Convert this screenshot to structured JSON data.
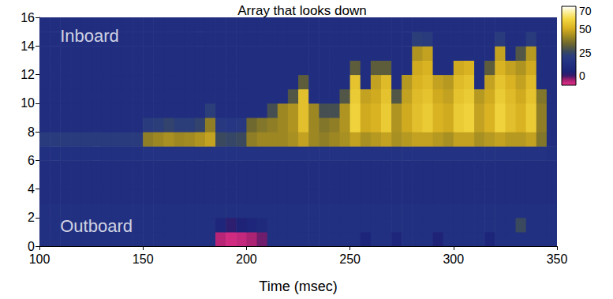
{
  "chart_data": {
    "type": "heatmap",
    "title": "Array that looks down",
    "xlabel": "Time (msec)",
    "xlim": [
      100,
      350
    ],
    "xticks": [
      100,
      150,
      200,
      250,
      300,
      350
    ],
    "ylim": [
      0,
      16
    ],
    "yticks": [
      0,
      2,
      4,
      6,
      8,
      10,
      12,
      14,
      16
    ],
    "grid": false,
    "x_edges": [
      100,
      105,
      110,
      115,
      120,
      125,
      130,
      135,
      140,
      145,
      150,
      155,
      160,
      165,
      170,
      175,
      180,
      185,
      190,
      195,
      200,
      205,
      210,
      215,
      220,
      225,
      230,
      235,
      240,
      245,
      250,
      255,
      260,
      265,
      270,
      275,
      280,
      285,
      290,
      295,
      300,
      305,
      310,
      315,
      320,
      325,
      330,
      335,
      340,
      345,
      350
    ],
    "y_edges": [
      0,
      1,
      2,
      3,
      4,
      5,
      6,
      7,
      8,
      9,
      10,
      11,
      12,
      13,
      14,
      15,
      16
    ],
    "values": [
      [
        13,
        13,
        13,
        13,
        13,
        13,
        13,
        13,
        13,
        13,
        13,
        13,
        13,
        13,
        13,
        13,
        13,
        -6,
        -8,
        -7,
        -5,
        -2,
        13,
        13,
        13,
        13,
        13,
        13,
        13,
        13,
        13,
        5,
        13,
        13,
        6,
        13,
        13,
        13,
        4,
        13,
        13,
        13,
        13,
        5,
        13,
        13,
        13,
        13,
        13,
        13
      ],
      [
        13,
        13,
        13,
        13,
        13,
        13,
        13,
        13,
        13,
        13,
        13,
        13,
        13,
        13,
        13,
        13,
        13,
        6,
        2,
        4,
        6,
        9,
        13,
        13,
        13,
        13,
        13,
        13,
        13,
        13,
        13,
        13,
        13,
        13,
        13,
        13,
        13,
        13,
        13,
        13,
        13,
        13,
        13,
        13,
        13,
        13,
        26,
        13,
        13,
        13
      ],
      [
        13,
        13,
        13,
        13,
        13,
        13,
        13,
        13,
        13,
        13,
        13,
        13,
        13,
        13,
        13,
        13,
        13,
        13,
        13,
        13,
        13,
        13,
        13,
        13,
        13,
        13,
        13,
        13,
        13,
        13,
        13,
        13,
        13,
        13,
        13,
        13,
        13,
        13,
        13,
        13,
        13,
        13,
        13,
        13,
        13,
        13,
        13,
        13,
        13,
        13
      ],
      [
        11,
        11,
        11,
        11,
        11,
        11,
        11,
        11,
        11,
        11,
        11,
        11,
        11,
        11,
        11,
        11,
        11,
        11,
        11,
        11,
        11,
        11,
        11,
        11,
        11,
        11,
        11,
        11,
        11,
        11,
        11,
        11,
        11,
        11,
        11,
        11,
        11,
        11,
        11,
        11,
        11,
        11,
        11,
        11,
        11,
        11,
        11,
        11,
        11,
        11
      ],
      [
        11,
        11,
        11,
        11,
        11,
        11,
        11,
        11,
        11,
        11,
        11,
        11,
        11,
        11,
        11,
        11,
        11,
        11,
        11,
        11,
        11,
        11,
        11,
        11,
        11,
        11,
        11,
        11,
        11,
        11,
        11,
        11,
        11,
        11,
        11,
        11,
        11,
        11,
        11,
        11,
        11,
        11,
        11,
        11,
        11,
        11,
        11,
        11,
        11,
        11
      ],
      [
        11,
        11,
        11,
        11,
        11,
        11,
        11,
        11,
        11,
        11,
        11,
        11,
        11,
        11,
        11,
        11,
        11,
        11,
        11,
        11,
        11,
        11,
        11,
        11,
        11,
        11,
        11,
        11,
        11,
        11,
        11,
        11,
        11,
        11,
        11,
        11,
        11,
        11,
        11,
        11,
        11,
        11,
        11,
        11,
        11,
        11,
        11,
        11,
        11,
        11
      ],
      [
        13,
        13,
        13,
        13,
        13,
        13,
        13,
        13,
        13,
        13,
        15,
        15,
        15,
        15,
        15,
        15,
        15,
        15,
        15,
        15,
        15,
        15,
        15,
        15,
        15,
        15,
        15,
        15,
        15,
        15,
        15,
        15,
        15,
        15,
        15,
        15,
        15,
        15,
        15,
        15,
        15,
        15,
        15,
        15,
        15,
        15,
        15,
        15,
        15,
        13
      ],
      [
        20,
        20,
        20,
        20,
        20,
        20,
        20,
        20,
        20,
        20,
        40,
        42,
        44,
        42,
        43,
        45,
        48,
        26,
        25,
        26,
        40,
        42,
        42,
        42,
        44,
        48,
        42,
        40,
        42,
        44,
        48,
        44,
        46,
        48,
        44,
        46,
        48,
        48,
        46,
        44,
        48,
        48,
        44,
        46,
        48,
        46,
        46,
        48,
        38,
        12
      ],
      [
        11,
        11,
        11,
        11,
        11,
        11,
        11,
        11,
        11,
        11,
        20,
        22,
        24,
        22,
        22,
        24,
        40,
        18,
        17,
        18,
        35,
        38,
        40,
        42,
        45,
        55,
        42,
        38,
        40,
        45,
        60,
        50,
        52,
        58,
        45,
        50,
        55,
        58,
        52,
        50,
        58,
        60,
        48,
        52,
        60,
        55,
        52,
        58,
        40,
        11
      ],
      [
        11,
        11,
        11,
        11,
        11,
        11,
        11,
        11,
        11,
        11,
        11,
        11,
        11,
        11,
        11,
        11,
        22,
        11,
        11,
        11,
        12,
        12,
        28,
        42,
        45,
        55,
        42,
        28,
        28,
        45,
        60,
        50,
        52,
        58,
        45,
        50,
        55,
        58,
        52,
        50,
        58,
        60,
        48,
        52,
        60,
        55,
        52,
        58,
        40,
        11
      ],
      [
        11,
        11,
        11,
        11,
        11,
        11,
        11,
        11,
        11,
        11,
        11,
        11,
        11,
        11,
        11,
        11,
        11,
        11,
        11,
        11,
        12,
        12,
        12,
        12,
        30,
        55,
        12,
        12,
        12,
        30,
        58,
        48,
        50,
        56,
        30,
        48,
        54,
        56,
        50,
        48,
        56,
        58,
        46,
        50,
        58,
        54,
        50,
        56,
        38,
        11
      ],
      [
        11,
        11,
        11,
        11,
        11,
        11,
        11,
        11,
        11,
        11,
        11,
        11,
        11,
        11,
        11,
        11,
        11,
        11,
        11,
        11,
        12,
        12,
        12,
        12,
        12,
        32,
        12,
        12,
        12,
        12,
        56,
        12,
        48,
        54,
        12,
        46,
        52,
        54,
        48,
        46,
        54,
        56,
        12,
        48,
        56,
        52,
        48,
        54,
        12,
        11
      ],
      [
        11,
        11,
        11,
        11,
        11,
        11,
        11,
        11,
        11,
        11,
        11,
        11,
        11,
        11,
        11,
        11,
        11,
        11,
        11,
        11,
        12,
        12,
        12,
        12,
        12,
        12,
        12,
        12,
        12,
        12,
        32,
        12,
        32,
        32,
        12,
        12,
        50,
        52,
        12,
        12,
        50,
        52,
        12,
        32,
        52,
        48,
        45,
        50,
        12,
        11
      ],
      [
        11,
        11,
        11,
        11,
        11,
        11,
        11,
        11,
        11,
        11,
        11,
        11,
        11,
        11,
        11,
        11,
        11,
        11,
        11,
        11,
        12,
        12,
        12,
        12,
        12,
        12,
        12,
        12,
        12,
        12,
        12,
        12,
        12,
        12,
        12,
        12,
        45,
        48,
        12,
        12,
        12,
        12,
        12,
        12,
        48,
        12,
        30,
        46,
        12,
        11
      ],
      [
        11,
        11,
        11,
        11,
        11,
        11,
        11,
        11,
        11,
        11,
        11,
        11,
        11,
        11,
        11,
        11,
        11,
        11,
        11,
        11,
        11,
        11,
        11,
        11,
        11,
        11,
        11,
        11,
        11,
        11,
        11,
        11,
        11,
        11,
        11,
        11,
        22,
        20,
        11,
        11,
        11,
        11,
        11,
        11,
        20,
        11,
        11,
        20,
        11,
        11
      ],
      [
        11,
        11,
        11,
        11,
        11,
        11,
        11,
        11,
        11,
        11,
        11,
        11,
        11,
        11,
        11,
        11,
        11,
        11,
        11,
        11,
        11,
        11,
        11,
        11,
        11,
        11,
        11,
        11,
        11,
        11,
        11,
        11,
        11,
        11,
        11,
        11,
        11,
        11,
        11,
        11,
        11,
        11,
        11,
        11,
        11,
        11,
        11,
        11,
        11,
        11
      ]
    ],
    "colorbar": {
      "lim": [
        -10,
        75
      ],
      "ticks": [
        0,
        25,
        50,
        70
      ]
    },
    "annotations": [
      {
        "text": "Inboard",
        "x": 110,
        "y": 14.7
      },
      {
        "text": "Outboard",
        "x": 110,
        "y": 1.4
      }
    ]
  }
}
